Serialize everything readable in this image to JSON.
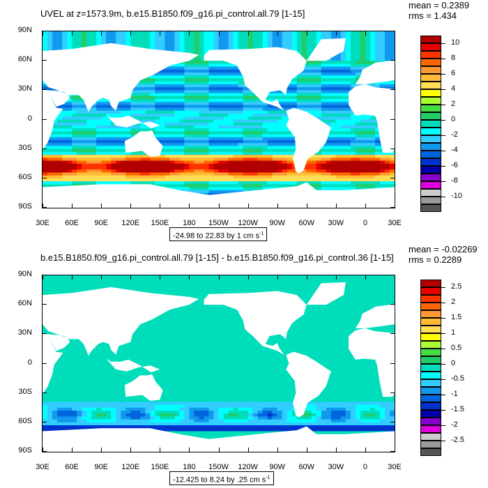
{
  "chart_data": [
    {
      "type": "heatmap",
      "title": "UVEL at z=1573.9m, b.e15.B1850.f09_g16.pi_control.all.79 [1-15]",
      "stats": {
        "mean": "mean = 0.2389",
        "rms": "rms = 1.434"
      },
      "range_note": "-24.98 to 22.83 by 1 cm s",
      "range_unit_exp": "-1",
      "x_ticks": [
        "30E",
        "60E",
        "90E",
        "120E",
        "150E",
        "180",
        "150W",
        "120W",
        "90W",
        "60W",
        "30W",
        "0",
        "30E"
      ],
      "y_ticks": [
        "90N",
        "60N",
        "30N",
        "0",
        "30S",
        "60S",
        "90S"
      ],
      "colorbar": {
        "labels": [
          "10",
          "8",
          "6",
          "4",
          "2",
          "0",
          "-2",
          "-4",
          "-6",
          "-8",
          "-10"
        ],
        "colors": [
          "#b20000",
          "#e60000",
          "#ff3300",
          "#ff6600",
          "#ff9933",
          "#ffbb33",
          "#ffdd55",
          "#ffff00",
          "#aaff33",
          "#44dd44",
          "#22cc66",
          "#00ddbb",
          "#00ffff",
          "#33ccff",
          "#1199ee",
          "#0066dd",
          "#0033cc",
          "#0000aa",
          "#8800cc",
          "#dd00dd",
          "#cccccc",
          "#999999",
          "#555555"
        ]
      },
      "field": {
        "kind": "zonal-velocity",
        "max": 22.83,
        "min": -24.98
      }
    },
    {
      "type": "heatmap",
      "title": "b.e15.B1850.f09_g16.pi_control.all.79 [1-15] - b.e15.B1850.f09_g16.pi_control.36 [1-15]",
      "stats": {
        "mean": "mean = -0.02269",
        "rms": "rms = 0.2289"
      },
      "range_note": "-12.425 to 8.24 by .25 cm s",
      "range_unit_exp": "-1",
      "x_ticks": [
        "30E",
        "60E",
        "90E",
        "120E",
        "150E",
        "180",
        "150W",
        "120W",
        "90W",
        "60W",
        "30W",
        "0",
        "30E"
      ],
      "y_ticks": [
        "90N",
        "60N",
        "30N",
        "0",
        "30S",
        "60S",
        "90S"
      ],
      "colorbar": {
        "labels": [
          "2.5",
          "2",
          "1.5",
          "1",
          "0.5",
          "0",
          "-0.5",
          "-1",
          "-1.5",
          "-2",
          "-2.5"
        ],
        "colors": [
          "#b20000",
          "#e60000",
          "#ff3300",
          "#ff6600",
          "#ff9933",
          "#ffbb33",
          "#ffdd55",
          "#ffff00",
          "#aaff33",
          "#44dd44",
          "#22cc66",
          "#00ddbb",
          "#00ffff",
          "#33ccff",
          "#1199ee",
          "#0066dd",
          "#0033cc",
          "#0000aa",
          "#8800cc",
          "#dd00dd",
          "#cccccc",
          "#999999",
          "#555555"
        ]
      },
      "field": {
        "kind": "difference",
        "max": 8.24,
        "min": -12.425
      }
    }
  ]
}
